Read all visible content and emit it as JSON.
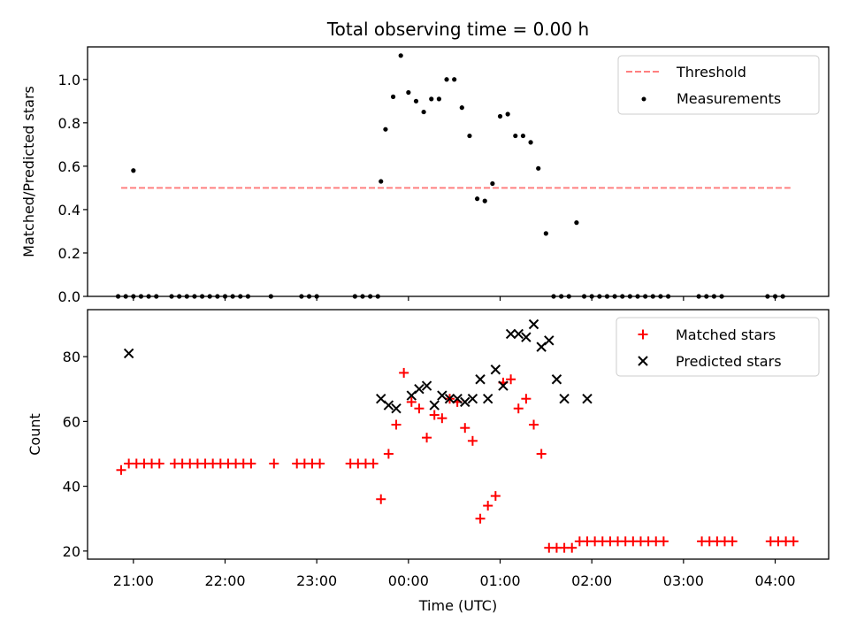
{
  "chart_data": [
    {
      "type": "scatter",
      "title": "Total observing time = 0.00 h",
      "xlabel": "",
      "ylabel": "Matched/Predicted stars",
      "xlim": [
        "20:30",
        "04:35"
      ],
      "ylim": [
        0,
        1.15
      ],
      "yticks": [
        "0.0",
        "0.2",
        "0.4",
        "0.6",
        "0.8",
        "1.0"
      ],
      "xticks": [
        "21:00",
        "22:00",
        "23:00",
        "00:00",
        "01:00",
        "02:00",
        "03:00",
        "04:00"
      ],
      "grid": false,
      "legend_position": "top-right",
      "threshold": {
        "name": "Threshold",
        "value": 0.5,
        "x_range": [
          "20:52",
          "04:10"
        ],
        "color": "#ff8080",
        "style": "dashed"
      },
      "series": [
        {
          "name": "Measurements",
          "color": "#000000",
          "marker": "dot",
          "x": [
            "20:50",
            "20:55",
            "21:00",
            "21:05",
            "21:10",
            "21:15",
            "21:25",
            "21:30",
            "21:35",
            "21:40",
            "21:45",
            "21:50",
            "21:55",
            "22:00",
            "22:05",
            "22:10",
            "22:15",
            "22:30",
            "22:50",
            "22:55",
            "23:00",
            "23:25",
            "23:30",
            "23:35",
            "23:40",
            "21:00",
            "23:42",
            "23:45",
            "23:50",
            "23:55",
            "00:00",
            "00:05",
            "00:10",
            "00:15",
            "00:20",
            "00:25",
            "00:30",
            "00:35",
            "00:40",
            "00:45",
            "00:50",
            "00:55",
            "01:00",
            "01:05",
            "01:10",
            "01:15",
            "01:20",
            "01:25",
            "01:30",
            "01:35",
            "01:40",
            "01:45",
            "01:50",
            "01:55",
            "02:00",
            "02:05",
            "02:10",
            "02:15",
            "02:20",
            "02:25",
            "02:30",
            "02:35",
            "02:40",
            "02:45",
            "02:50",
            "03:10",
            "03:15",
            "03:20",
            "03:25",
            "03:55",
            "04:00",
            "04:05"
          ],
          "y": [
            0,
            0,
            0,
            0,
            0,
            0,
            0,
            0,
            0,
            0,
            0,
            0,
            0,
            0,
            0,
            0,
            0,
            0,
            0,
            0,
            0,
            0,
            0,
            0,
            0,
            0.58,
            0.53,
            0.77,
            0.92,
            1.11,
            0.94,
            0.9,
            0.85,
            0.91,
            0.91,
            1.0,
            1.0,
            0.87,
            0.74,
            0.45,
            0.44,
            0.52,
            0.83,
            0.84,
            0.74,
            0.74,
            0.71,
            0.59,
            0.29,
            0,
            0,
            0,
            0.34,
            0,
            0,
            0,
            0,
            0,
            0,
            0,
            0,
            0,
            0,
            0,
            0,
            0,
            0,
            0,
            0,
            0,
            0,
            0
          ]
        }
      ]
    },
    {
      "type": "scatter",
      "title": "",
      "xlabel": "Time (UTC)",
      "ylabel": "Count",
      "xlim": [
        "20:30",
        "04:35"
      ],
      "ylim": [
        17.5,
        94.5
      ],
      "yticks": [
        "20",
        "40",
        "60",
        "80"
      ],
      "xticks": [
        "21:00",
        "22:00",
        "23:00",
        "00:00",
        "01:00",
        "02:00",
        "03:00",
        "04:00"
      ],
      "grid": false,
      "legend_position": "top-right",
      "series": [
        {
          "name": "Matched stars",
          "color": "#ff0000",
          "marker": "plus",
          "x": [
            "20:52",
            "20:57",
            "21:02",
            "21:07",
            "21:12",
            "21:17",
            "21:27",
            "21:32",
            "21:37",
            "21:42",
            "21:47",
            "21:52",
            "21:57",
            "22:02",
            "22:07",
            "22:12",
            "22:17",
            "22:32",
            "22:47",
            "22:52",
            "22:57",
            "23:02",
            "23:22",
            "23:27",
            "23:32",
            "23:37",
            "23:42",
            "23:47",
            "23:52",
            "23:57",
            "00:02",
            "00:07",
            "00:12",
            "00:17",
            "00:22",
            "00:27",
            "00:32",
            "00:37",
            "00:42",
            "00:47",
            "00:52",
            "00:57",
            "01:02",
            "01:07",
            "01:12",
            "01:17",
            "01:22",
            "01:27",
            "01:32",
            "01:37",
            "01:42",
            "01:47",
            "01:52",
            "01:57",
            "02:02",
            "02:07",
            "02:12",
            "02:17",
            "02:22",
            "02:27",
            "02:32",
            "02:37",
            "02:42",
            "02:47",
            "03:12",
            "03:17",
            "03:22",
            "03:27",
            "03:32",
            "03:57",
            "04:02",
            "04:07",
            "04:12"
          ],
          "y": [
            45,
            47,
            47,
            47,
            47,
            47,
            47,
            47,
            47,
            47,
            47,
            47,
            47,
            47,
            47,
            47,
            47,
            47,
            47,
            47,
            47,
            47,
            47,
            47,
            47,
            47,
            36,
            50,
            59,
            75,
            66,
            64,
            55,
            62,
            61,
            67,
            66,
            58,
            54,
            30,
            34,
            37,
            72,
            73,
            64,
            67,
            59,
            50,
            21,
            21,
            21,
            21,
            23,
            23,
            23,
            23,
            23,
            23,
            23,
            23,
            23,
            23,
            23,
            23,
            23,
            23,
            23,
            23,
            23,
            23,
            23,
            23,
            23
          ]
        },
        {
          "name": "Predicted stars",
          "color": "#000000",
          "marker": "x",
          "x": [
            "20:57",
            "23:42",
            "23:47",
            "23:52",
            "00:02",
            "00:07",
            "00:12",
            "00:17",
            "00:22",
            "00:27",
            "00:32",
            "00:37",
            "00:42",
            "00:47",
            "00:52",
            "00:57",
            "01:02",
            "01:07",
            "01:12",
            "01:17",
            "01:22",
            "01:27",
            "01:32",
            "01:37",
            "01:42",
            "01:57"
          ],
          "y": [
            81,
            67,
            65,
            64,
            68,
            70,
            71,
            65,
            68,
            67,
            67,
            66,
            67,
            73,
            67,
            76,
            71,
            87,
            87,
            86,
            90,
            83,
            85,
            73,
            67,
            67
          ]
        }
      ]
    }
  ]
}
